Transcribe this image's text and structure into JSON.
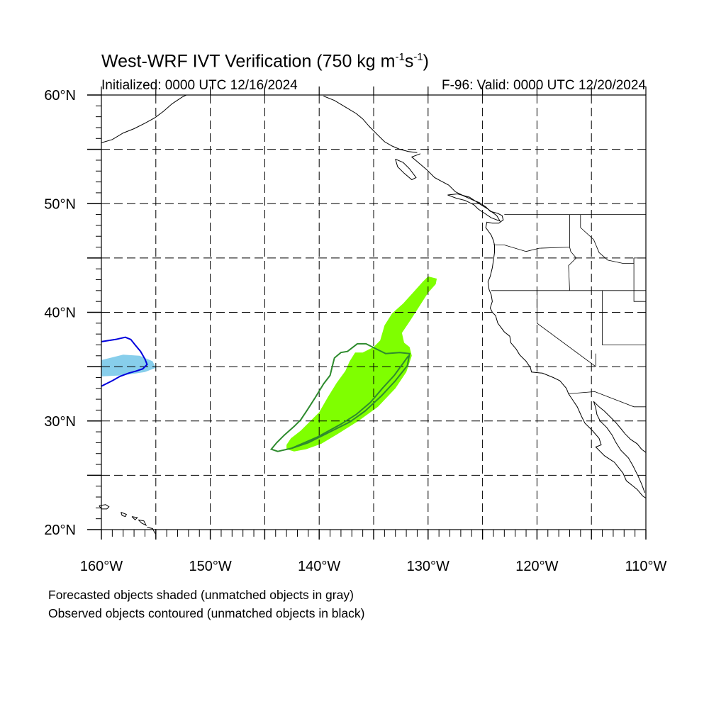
{
  "title": {
    "main": "West-WRF IVT Verification (750 kg m",
    "exp1": "-1",
    "mid": "s",
    "exp2": "-1",
    "end": ")"
  },
  "init_label": "Initialized: 0000 UTC 12/16/2024",
  "valid_label": "F-96: Valid: 0000 UTC 12/20/2024",
  "lat_labels": [
    "60°N",
    "50°N",
    "40°N",
    "30°N",
    "20°N"
  ],
  "lon_labels": [
    "160°W",
    "150°W",
    "140°W",
    "130°W",
    "120°W",
    "110°W"
  ],
  "legend_notes": [
    "Forecasted objects shaded (unmatched objects in gray)",
    "Observed objects contoured (unmatched objects in black)"
  ],
  "colors": {
    "forecast_object_1": "#87CEEB",
    "observed_object_1": "#0000DD",
    "forecast_object_2": "#7FFF00",
    "observed_object_2": "#2E8B2E",
    "coastline": "#000000",
    "grid": "#000000"
  },
  "map_extent": {
    "lon": [
      -160,
      -110
    ],
    "lat": [
      20,
      60
    ]
  },
  "gridlines": {
    "lon_every_deg": 5,
    "lat_every_deg": 5,
    "style": "dashed"
  },
  "objects": {
    "forecast_blue": [
      [
        -160,
        35.6
      ],
      [
        -158,
        36.1
      ],
      [
        -156.5,
        36
      ],
      [
        -155.3,
        35.5
      ],
      [
        -155,
        34.9
      ],
      [
        -156,
        34.5
      ],
      [
        -158,
        34.2
      ],
      [
        -160,
        34.1
      ]
    ],
    "observed_blue": [
      [
        -160,
        37.3
      ],
      [
        -158.7,
        37.5
      ],
      [
        -157.8,
        37.7
      ],
      [
        -157.3,
        37.5
      ],
      [
        -156.9,
        37
      ],
      [
        -156.4,
        36.4
      ],
      [
        -156,
        35.7
      ],
      [
        -155.8,
        35.2
      ],
      [
        -156.2,
        34.8
      ],
      [
        -156.8,
        34.6
      ],
      [
        -157.5,
        34.4
      ],
      [
        -158.3,
        34.1
      ],
      [
        -159,
        33.7
      ],
      [
        -160,
        33.2
      ]
    ],
    "forecast_green": [
      [
        -142.3,
        27.2
      ],
      [
        -141.2,
        27.4
      ],
      [
        -139.8,
        27.9
      ],
      [
        -138.3,
        28.8
      ],
      [
        -136.4,
        30
      ],
      [
        -134.6,
        31.3
      ],
      [
        -133,
        33
      ],
      [
        -132,
        34.5
      ],
      [
        -131.5,
        36
      ],
      [
        -131.7,
        36.8
      ],
      [
        -132.2,
        37.2
      ],
      [
        -132.4,
        38.1
      ],
      [
        -131.6,
        39.3
      ],
      [
        -130.7,
        40.7
      ],
      [
        -130,
        41.8
      ],
      [
        -129.3,
        42.6
      ],
      [
        -129.2,
        43.1
      ],
      [
        -130,
        43.3
      ],
      [
        -130.5,
        42.8
      ],
      [
        -131.3,
        41.9
      ],
      [
        -132.3,
        40.8
      ],
      [
        -133.3,
        39.9
      ],
      [
        -134,
        38.8
      ],
      [
        -134.4,
        37.4
      ],
      [
        -135,
        36.8
      ],
      [
        -136,
        36.3
      ],
      [
        -136.7,
        36.3
      ],
      [
        -137.2,
        35.5
      ],
      [
        -137.6,
        34.6
      ],
      [
        -138.4,
        33.5
      ],
      [
        -139.2,
        32.2
      ],
      [
        -140,
        30.8
      ],
      [
        -140.8,
        30
      ],
      [
        -141.7,
        29.1
      ],
      [
        -142.6,
        28.4
      ],
      [
        -143,
        27.8
      ],
      [
        -143,
        27.4
      ]
    ]
  },
  "observed_green": [
    [
      -143.8,
      27.2
    ],
    [
      -142.5,
      27.5
    ],
    [
      -141,
      28
    ],
    [
      -139.2,
      28.9
    ],
    [
      -137.2,
      29.9
    ],
    [
      -135.8,
      30.9
    ],
    [
      -134.3,
      32.3
    ],
    [
      -133,
      33.7
    ],
    [
      -131.9,
      35.1
    ],
    [
      -131.7,
      36.2
    ],
    [
      -132.6,
      36.3
    ],
    [
      -133.9,
      36.2
    ],
    [
      -134.7,
      36.6
    ],
    [
      -135.7,
      37.1
    ],
    [
      -136.5,
      37.1
    ],
    [
      -137.4,
      36.4
    ],
    [
      -138,
      36.3
    ],
    [
      -138.6,
      35.8
    ],
    [
      -138.8,
      35
    ],
    [
      -139,
      34.2
    ],
    [
      -139.6,
      33.4
    ],
    [
      -140.4,
      32.1
    ],
    [
      -141.1,
      31
    ],
    [
      -141.7,
      30.1
    ],
    [
      -142.3,
      29.5
    ],
    [
      -143.2,
      28.7
    ],
    [
      -143.9,
      28
    ],
    [
      -144.4,
      27.4
    ]
  ],
  "observed_green_centerline": [
    [
      -142.5,
      27.5
    ],
    [
      -140.2,
      28.5
    ],
    [
      -138,
      29.7
    ],
    [
      -136.6,
      30.6
    ],
    [
      -135.3,
      31.7
    ],
    [
      -134.2,
      33
    ],
    [
      -133.1,
      34.2
    ],
    [
      -132.3,
      35.3
    ],
    [
      -131.8,
      36
    ]
  ],
  "coastlines": {
    "north_america_west": [
      [
        -130.7,
        54.6
      ],
      [
        -131.5,
        54.3
      ],
      [
        -130.8,
        53.7
      ],
      [
        -130.1,
        53.1
      ],
      [
        -129.4,
        52.4
      ],
      [
        -128.1,
        51.7
      ],
      [
        -127.5,
        51.1
      ],
      [
        -126.7,
        50.7
      ],
      [
        -125.8,
        50.3
      ],
      [
        -125.3,
        50.1
      ],
      [
        -124.7,
        49.7
      ],
      [
        -124.3,
        49.3
      ],
      [
        -123.6,
        49.1
      ],
      [
        -123.2,
        48.9
      ],
      [
        -123.1,
        48.5
      ],
      [
        -123.5,
        48.2
      ],
      [
        -124.1,
        48.2
      ],
      [
        -124.6,
        48.3
      ],
      [
        -124.7,
        47.8
      ],
      [
        -124.2,
        47.1
      ],
      [
        -124,
        46.6
      ],
      [
        -123.9,
        46.2
      ],
      [
        -123.9,
        45.5
      ],
      [
        -124,
        44.8
      ],
      [
        -124.1,
        44.1
      ],
      [
        -124.3,
        43.3
      ],
      [
        -124.5,
        42.8
      ],
      [
        -124.4,
        42.1
      ],
      [
        -124.2,
        41.6
      ],
      [
        -124.1,
        41
      ],
      [
        -124.3,
        40.4
      ],
      [
        -124.1,
        40
      ],
      [
        -123.8,
        39.7
      ],
      [
        -123.6,
        39
      ],
      [
        -123,
        38.2
      ],
      [
        -122.5,
        37.8
      ],
      [
        -122.4,
        37.2
      ],
      [
        -121.9,
        36.6
      ],
      [
        -121.6,
        36.1
      ],
      [
        -121,
        35.5
      ],
      [
        -120.6,
        34.9
      ],
      [
        -120.5,
        34.5
      ],
      [
        -119.5,
        34.4
      ],
      [
        -118.5,
        34
      ],
      [
        -117.9,
        33.7
      ],
      [
        -117.3,
        33
      ],
      [
        -117.1,
        32.5
      ],
      [
        -116.7,
        31.9
      ],
      [
        -116.3,
        31.3
      ],
      [
        -115.9,
        30.4
      ],
      [
        -115.6,
        29.8
      ],
      [
        -114.9,
        29.1
      ],
      [
        -114.3,
        28.4
      ],
      [
        -114.1,
        27.8
      ],
      [
        -114.6,
        27.6
      ],
      [
        -113.8,
        26.8
      ],
      [
        -112.9,
        26.2
      ],
      [
        -112.1,
        25.2
      ],
      [
        -111.8,
        24.5
      ],
      [
        -110.8,
        23.7
      ],
      [
        -110.3,
        23.1
      ],
      [
        -110,
        22.9
      ]
    ],
    "alaska_panhandle": [
      [
        -139.6,
        59.9
      ],
      [
        -138.6,
        59.5
      ],
      [
        -137.6,
        58.9
      ],
      [
        -136.6,
        58.3
      ],
      [
        -136,
        57.8
      ],
      [
        -135.4,
        57.1
      ],
      [
        -134.7,
        56.4
      ],
      [
        -134,
        55.7
      ],
      [
        -133.3,
        55.3
      ],
      [
        -132.6,
        55
      ],
      [
        -131.8,
        54.8
      ],
      [
        -131,
        54.7
      ]
    ],
    "alaska_west": [
      [
        -160,
        55.6
      ],
      [
        -159,
        55.9
      ],
      [
        -158,
        56.5
      ],
      [
        -157,
        56.9
      ],
      [
        -156,
        57.4
      ],
      [
        -155.1,
        57.9
      ],
      [
        -154.3,
        58.5
      ],
      [
        -153.5,
        59.2
      ],
      [
        -152.6,
        59.8
      ],
      [
        -152.2,
        60
      ]
    ],
    "baja_mainland": [
      [
        -114.8,
        31.8
      ],
      [
        -114.3,
        31.3
      ],
      [
        -113.8,
        30.9
      ],
      [
        -113.3,
        30.4
      ],
      [
        -112.8,
        29.9
      ],
      [
        -112.3,
        29.3
      ],
      [
        -111.9,
        28.8
      ],
      [
        -111.4,
        28.3
      ],
      [
        -110.8,
        27.9
      ],
      [
        -110.4,
        27.4
      ],
      [
        -110,
        27.1
      ]
    ],
    "gulf_ca_west": [
      [
        -114.8,
        31.8
      ],
      [
        -114.6,
        31.2
      ],
      [
        -114.5,
        30.6
      ],
      [
        -114.2,
        30
      ],
      [
        -113.6,
        29.4
      ],
      [
        -113.1,
        28.7
      ],
      [
        -112.8,
        28.1
      ],
      [
        -112.3,
        27.3
      ],
      [
        -111.6,
        26.6
      ],
      [
        -111.2,
        25.9
      ],
      [
        -110.7,
        24.9
      ],
      [
        -110.4,
        24.2
      ],
      [
        -110.1,
        23.4
      ]
    ],
    "hawaii_1": [
      [
        -160.2,
        22.2
      ],
      [
        -159.6,
        22.3
      ],
      [
        -159.3,
        22.1
      ],
      [
        -159.5,
        21.9
      ],
      [
        -160,
        21.9
      ],
      [
        -160.2,
        22.2
      ]
    ],
    "hawaii_2": [
      [
        -158.2,
        21.6
      ],
      [
        -157.7,
        21.4
      ],
      [
        -157.8,
        21.2
      ],
      [
        -158.1,
        21.3
      ],
      [
        -158.2,
        21.6
      ]
    ],
    "hawaii_3": [
      [
        -157.2,
        21.2
      ],
      [
        -156.7,
        21.1
      ],
      [
        -156.9,
        20.9
      ],
      [
        -157.2,
        21.2
      ]
    ],
    "hawaii_4": [
      [
        -156.6,
        20.9
      ],
      [
        -156.1,
        20.8
      ],
      [
        -155.9,
        20.4
      ],
      [
        -156.3,
        20.6
      ],
      [
        -156.6,
        20.9
      ]
    ],
    "hawaii_5": [
      [
        -155.8,
        20.2
      ],
      [
        -155.3,
        20.1
      ],
      [
        -155.1,
        19.7
      ],
      [
        -155,
        19.6
      ]
    ],
    "vancouver_island": [
      [
        -128.2,
        50.8
      ],
      [
        -127.4,
        50.5
      ],
      [
        -126.6,
        50.3
      ],
      [
        -125.8,
        49.9
      ],
      [
        -125.4,
        49.5
      ],
      [
        -124.8,
        49.1
      ],
      [
        -124.2,
        48.7
      ],
      [
        -123.4,
        48.4
      ],
      [
        -123.7,
        48.9
      ],
      [
        -124.5,
        49.5
      ],
      [
        -125.3,
        50
      ],
      [
        -126.2,
        50.6
      ],
      [
        -127.3,
        50.9
      ],
      [
        -128.2,
        50.8
      ]
    ],
    "haida_gwaii": [
      [
        -133,
        54.1
      ],
      [
        -132.3,
        53.8
      ],
      [
        -131.7,
        53.2
      ],
      [
        -131.1,
        52.4
      ],
      [
        -131.5,
        52.2
      ],
      [
        -132.2,
        52.8
      ],
      [
        -132.8,
        53.4
      ],
      [
        -133,
        54.1
      ]
    ]
  },
  "borders": {
    "us_canada": [
      [
        -123,
        49
      ],
      [
        -110,
        49
      ]
    ],
    "or_wa": [
      [
        -124,
        46.2
      ],
      [
        -123,
        46.2
      ],
      [
        -121,
        45.6
      ],
      [
        -119.8,
        45.9
      ],
      [
        -117,
        46
      ]
    ],
    "ca_or": [
      [
        -124.2,
        42
      ],
      [
        -110,
        42
      ]
    ],
    "nv_ca": [
      [
        -120,
        42
      ],
      [
        -120,
        39
      ],
      [
        -114.6,
        35
      ]
    ],
    "id_wa": [
      [
        -117,
        49
      ],
      [
        -117,
        46
      ],
      [
        -116.9,
        45.6
      ],
      [
        -116.4,
        45
      ],
      [
        -117.1,
        44.3
      ],
      [
        -117,
        42
      ]
    ],
    "id_mt": [
      [
        -116,
        49
      ],
      [
        -116,
        47.8
      ],
      [
        -114.8,
        46.7
      ],
      [
        -114.3,
        45.5
      ],
      [
        -113.5,
        44.8
      ],
      [
        -112.1,
        44.5
      ],
      [
        -111.1,
        44.5
      ],
      [
        -111.1,
        45
      ]
    ],
    "mt_wy_line": [
      [
        -111.1,
        45
      ],
      [
        -110,
        45
      ]
    ],
    "ut_nv": [
      [
        -114,
        42
      ],
      [
        -114,
        37
      ],
      [
        -110,
        37
      ]
    ],
    "wy_ut": [
      [
        -111.1,
        45
      ],
      [
        -111.1,
        41
      ],
      [
        -110,
        41
      ]
    ],
    "az_nv": [
      [
        -114.6,
        36.2
      ],
      [
        -114.6,
        35
      ]
    ],
    "us_mexico": [
      [
        -117.1,
        32.5
      ],
      [
        -114.7,
        32.7
      ],
      [
        -111.1,
        31.3
      ],
      [
        -110,
        31.3
      ]
    ]
  }
}
